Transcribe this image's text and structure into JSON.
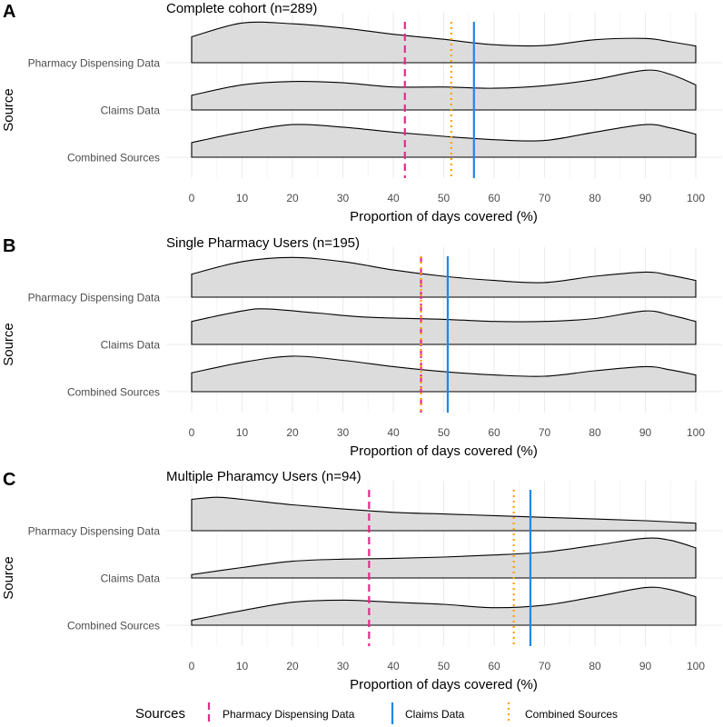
{
  "chart_data": [
    {
      "type": "ridgeline-density",
      "panel_label": "A",
      "title": "Complete cohort (n=289)",
      "xlabel": "Proportion of days covered (%)",
      "ylabel": "Source",
      "xlim": [
        0,
        100
      ],
      "xticks": [
        0,
        10,
        20,
        30,
        40,
        50,
        60,
        70,
        80,
        90,
        100
      ],
      "categories": [
        "Pharmacy Dispensing Data",
        "Claims Data",
        "Combined Sources"
      ],
      "densities": {
        "Pharmacy Dispensing Data": [
          [
            0,
            0.62
          ],
          [
            10,
            0.95
          ],
          [
            20,
            0.93
          ],
          [
            30,
            0.83
          ],
          [
            40,
            0.68
          ],
          [
            50,
            0.56
          ],
          [
            60,
            0.43
          ],
          [
            70,
            0.41
          ],
          [
            80,
            0.55
          ],
          [
            90,
            0.58
          ],
          [
            95,
            0.5
          ],
          [
            100,
            0.4
          ]
        ],
        "Claims Data": [
          [
            0,
            0.35
          ],
          [
            10,
            0.6
          ],
          [
            20,
            0.68
          ],
          [
            30,
            0.65
          ],
          [
            40,
            0.55
          ],
          [
            50,
            0.55
          ],
          [
            60,
            0.52
          ],
          [
            70,
            0.58
          ],
          [
            80,
            0.73
          ],
          [
            90,
            0.95
          ],
          [
            95,
            0.85
          ],
          [
            100,
            0.6
          ]
        ],
        "Combined Sources": [
          [
            0,
            0.35
          ],
          [
            10,
            0.6
          ],
          [
            20,
            0.78
          ],
          [
            30,
            0.72
          ],
          [
            40,
            0.6
          ],
          [
            50,
            0.5
          ],
          [
            60,
            0.42
          ],
          [
            70,
            0.4
          ],
          [
            80,
            0.6
          ],
          [
            90,
            0.78
          ],
          [
            95,
            0.7
          ],
          [
            100,
            0.55
          ]
        ]
      },
      "reference_lines": [
        {
          "source": "Pharmacy Dispensing Data",
          "value": 42.3
        },
        {
          "source": "Claims Data",
          "value": 56.0
        },
        {
          "source": "Combined Sources",
          "value": 51.5
        }
      ]
    },
    {
      "type": "ridgeline-density",
      "panel_label": "B",
      "title": "Single Pharmacy Users (n=195)",
      "xlabel": "Proportion of days covered (%)",
      "ylabel": "Source",
      "xlim": [
        0,
        100
      ],
      "xticks": [
        0,
        10,
        20,
        30,
        40,
        50,
        60,
        70,
        80,
        90,
        100
      ],
      "categories": [
        "Pharmacy Dispensing Data",
        "Claims Data",
        "Combined Sources"
      ],
      "densities": {
        "Pharmacy Dispensing Data": [
          [
            0,
            0.55
          ],
          [
            10,
            0.85
          ],
          [
            20,
            0.95
          ],
          [
            30,
            0.85
          ],
          [
            40,
            0.65
          ],
          [
            50,
            0.5
          ],
          [
            60,
            0.4
          ],
          [
            70,
            0.35
          ],
          [
            80,
            0.5
          ],
          [
            90,
            0.6
          ],
          [
            95,
            0.52
          ],
          [
            100,
            0.4
          ]
        ],
        "Claims Data": [
          [
            0,
            0.55
          ],
          [
            10,
            0.8
          ],
          [
            15,
            0.85
          ],
          [
            25,
            0.75
          ],
          [
            35,
            0.65
          ],
          [
            50,
            0.6
          ],
          [
            60,
            0.55
          ],
          [
            70,
            0.55
          ],
          [
            80,
            0.62
          ],
          [
            90,
            0.8
          ],
          [
            95,
            0.7
          ],
          [
            100,
            0.55
          ]
        ],
        "Combined Sources": [
          [
            0,
            0.45
          ],
          [
            10,
            0.7
          ],
          [
            20,
            0.85
          ],
          [
            30,
            0.75
          ],
          [
            40,
            0.6
          ],
          [
            50,
            0.48
          ],
          [
            60,
            0.4
          ],
          [
            70,
            0.37
          ],
          [
            80,
            0.5
          ],
          [
            90,
            0.6
          ],
          [
            95,
            0.52
          ],
          [
            100,
            0.4
          ]
        ]
      },
      "reference_lines": [
        {
          "source": "Pharmacy Dispensing Data",
          "value": 45.5
        },
        {
          "source": "Claims Data",
          "value": 50.8
        },
        {
          "source": "Combined Sources",
          "value": 45.5
        }
      ]
    },
    {
      "type": "ridgeline-density",
      "panel_label": "C",
      "title": "Multiple Pharamcy Users (n=94)",
      "xlabel": "Proportion of days covered (%)",
      "ylabel": "Source",
      "xlim": [
        0,
        100
      ],
      "xticks": [
        0,
        10,
        20,
        30,
        40,
        50,
        60,
        70,
        80,
        90,
        100
      ],
      "categories": [
        "Pharmacy Dispensing Data",
        "Claims Data",
        "Combined Sources"
      ],
      "densities": {
        "Pharmacy Dispensing Data": [
          [
            0,
            0.75
          ],
          [
            5,
            0.8
          ],
          [
            10,
            0.75
          ],
          [
            20,
            0.62
          ],
          [
            30,
            0.52
          ],
          [
            40,
            0.44
          ],
          [
            50,
            0.4
          ],
          [
            60,
            0.36
          ],
          [
            70,
            0.32
          ],
          [
            80,
            0.28
          ],
          [
            90,
            0.24
          ],
          [
            100,
            0.18
          ]
        ],
        "Claims Data": [
          [
            0,
            0.08
          ],
          [
            10,
            0.25
          ],
          [
            20,
            0.4
          ],
          [
            30,
            0.45
          ],
          [
            40,
            0.47
          ],
          [
            50,
            0.5
          ],
          [
            60,
            0.55
          ],
          [
            70,
            0.62
          ],
          [
            80,
            0.78
          ],
          [
            90,
            0.95
          ],
          [
            95,
            0.9
          ],
          [
            100,
            0.72
          ]
        ],
        "Combined Sources": [
          [
            0,
            0.12
          ],
          [
            10,
            0.35
          ],
          [
            20,
            0.55
          ],
          [
            30,
            0.6
          ],
          [
            40,
            0.55
          ],
          [
            50,
            0.5
          ],
          [
            60,
            0.42
          ],
          [
            70,
            0.48
          ],
          [
            80,
            0.68
          ],
          [
            90,
            0.9
          ],
          [
            95,
            0.85
          ],
          [
            100,
            0.68
          ]
        ]
      },
      "reference_lines": [
        {
          "source": "Pharmacy Dispensing Data",
          "value": 35.2
        },
        {
          "source": "Claims Data",
          "value": 67.2
        },
        {
          "source": "Combined Sources",
          "value": 63.9
        }
      ]
    }
  ],
  "legend": {
    "title": "Sources",
    "items": [
      {
        "label": "Pharmacy Dispensing Data",
        "color": "#E7298A",
        "style": "dashed"
      },
      {
        "label": "Claims Data",
        "color": "#1E88E5",
        "style": "solid"
      },
      {
        "label": "Combined Sources",
        "color": "#FFA000",
        "style": "dotted"
      }
    ]
  },
  "colors": {
    "density_fill": "#DCDCDC",
    "density_stroke": "#000000",
    "grid_major": "#EBEBEB",
    "grid_minor": "#F5F5F5"
  }
}
